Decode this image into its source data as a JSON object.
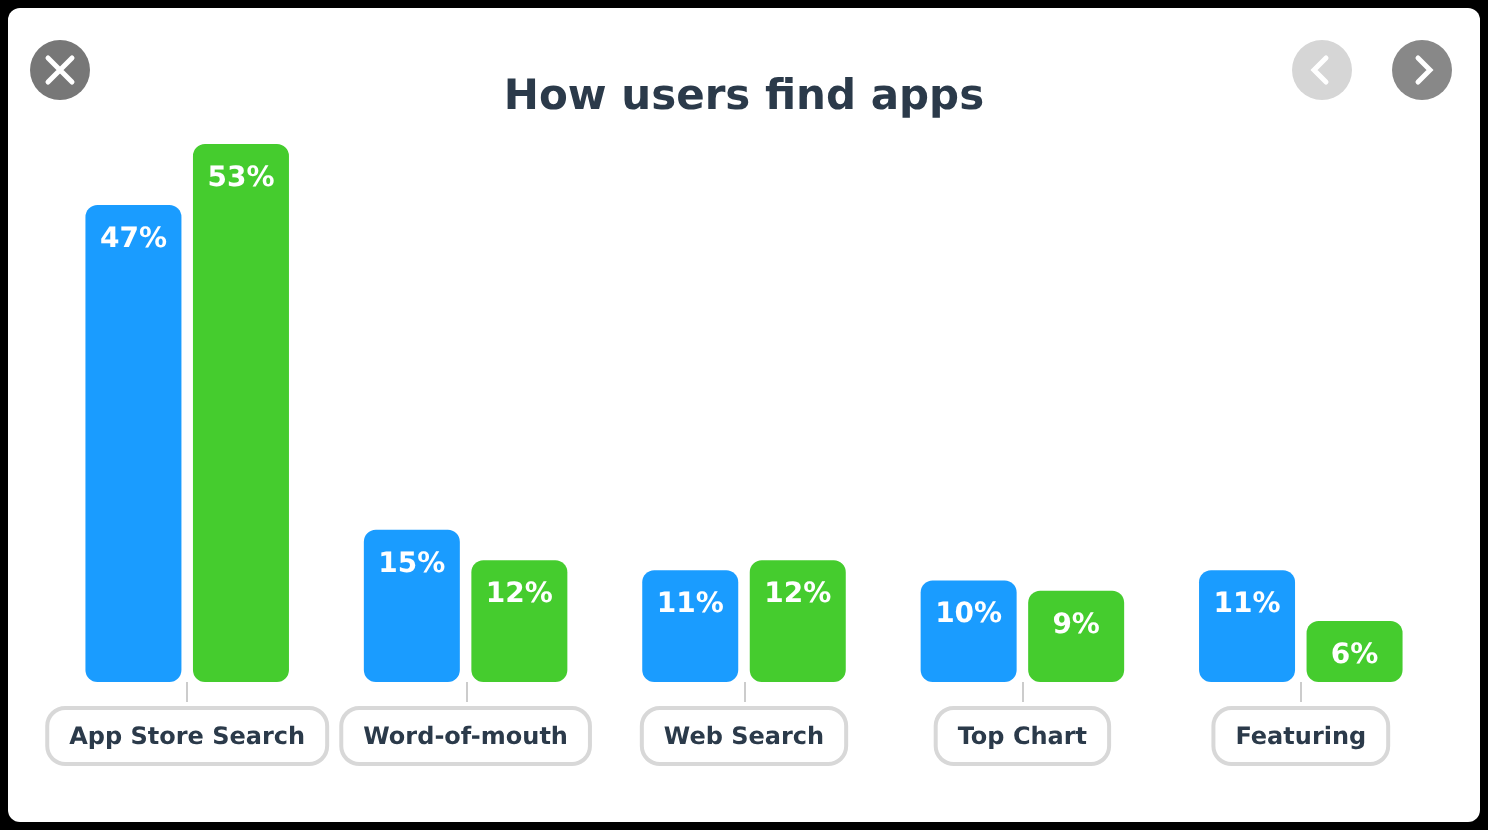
{
  "chart_data": {
    "type": "bar",
    "title": "How users find apps",
    "categories": [
      "App Store Search",
      "Word-of-mouth",
      "Web Search",
      "Top Chart",
      "Featuring"
    ],
    "series": [
      {
        "color": "#1a9cff",
        "values": [
          47,
          15,
          11,
          10,
          11
        ],
        "value_labels": [
          "47%",
          "15%",
          "11%",
          "10%",
          "11%"
        ]
      },
      {
        "color": "#45cc2e",
        "values": [
          53,
          12,
          12,
          9,
          6
        ],
        "value_labels": [
          "53%",
          "12%",
          "12%",
          "9%",
          "6%"
        ]
      }
    ]
  }
}
